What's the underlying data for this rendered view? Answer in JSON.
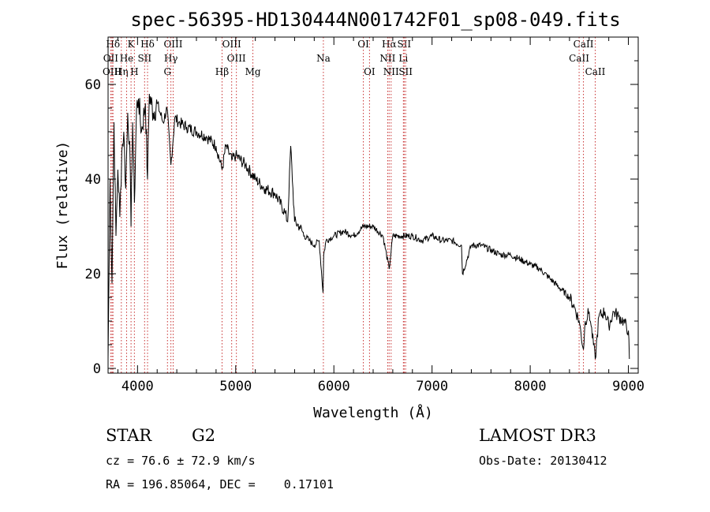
{
  "chart_data": {
    "type": "line",
    "title": "spec-56395-HD130444N001742F01_sp08-049.fits",
    "xlabel": "Wavelength (Å)",
    "ylabel": "Flux (relative)",
    "xlim": [
      3700,
      9100
    ],
    "ylim": [
      -1,
      70
    ],
    "xticks": [
      4000,
      5000,
      6000,
      7000,
      8000,
      9000
    ],
    "yticks": [
      0,
      20,
      40,
      60
    ],
    "series": [
      {
        "name": "flux",
        "x": [
          3700,
          3720,
          3740,
          3760,
          3780,
          3800,
          3820,
          3840,
          3860,
          3880,
          3900,
          3920,
          3934,
          3950,
          3968,
          3990,
          4010,
          4040,
          4080,
          4102,
          4120,
          4160,
          4200,
          4260,
          4300,
          4340,
          4380,
          4420,
          4500,
          4600,
          4700,
          4800,
          4861,
          4900,
          4960,
          5000,
          5100,
          5200,
          5300,
          5400,
          5500,
          5530,
          5560,
          5600,
          5650,
          5700,
          5750,
          5800,
          5850,
          5890,
          5896,
          5920,
          6000,
          6100,
          6200,
          6300,
          6400,
          6500,
          6563,
          6600,
          6700,
          6800,
          6900,
          7000,
          7100,
          7200,
          7300,
          7310,
          7400,
          7500,
          7600,
          7700,
          7800,
          7900,
          8000,
          8100,
          8200,
          8300,
          8400,
          8450,
          8498,
          8542,
          8560,
          8600,
          8620,
          8662,
          8700,
          8760,
          8800,
          8850,
          8900,
          8950,
          9000,
          9010
        ],
        "values": [
          2,
          40,
          18,
          52,
          28,
          42,
          32,
          46,
          50,
          38,
          54,
          48,
          30,
          52,
          35,
          55,
          57,
          50,
          56,
          40,
          58,
          54,
          56,
          52,
          55,
          43,
          53,
          52,
          51,
          50,
          49,
          47,
          42,
          47,
          44,
          45,
          43,
          40,
          38,
          37,
          33,
          31,
          47,
          31,
          30,
          28,
          27,
          26,
          27,
          16,
          24,
          27,
          28,
          29,
          28,
          30,
          30,
          28,
          21,
          28,
          28,
          28,
          27,
          28,
          27,
          27,
          26,
          20,
          26,
          26,
          25,
          24,
          24,
          23,
          22,
          21,
          19,
          17,
          15,
          13,
          10,
          4,
          10,
          12,
          9,
          2,
          11,
          12,
          9,
          12,
          11,
          10,
          8,
          2
        ]
      }
    ],
    "lines": [
      {
        "label": "Hδ",
        "wavelength": 3750,
        "row": 1
      },
      {
        "label": "OII",
        "wavelength": 3727,
        "row": 2
      },
      {
        "label": "OIII",
        "wavelength": 3740,
        "row": 3
      },
      {
        "label": "Hη",
        "wavelength": 3835,
        "row": 3
      },
      {
        "label": "He",
        "wavelength": 3889,
        "row": 2
      },
      {
        "label": "K",
        "wavelength": 3934,
        "row": 1
      },
      {
        "label": "H",
        "wavelength": 3968,
        "row": 3
      },
      {
        "label": "SII",
        "wavelength": 4072,
        "row": 2
      },
      {
        "label": "Hδ",
        "wavelength": 4102,
        "row": 1
      },
      {
        "label": "OIII",
        "wavelength": 4363,
        "row": 1
      },
      {
        "label": "Hγ",
        "wavelength": 4340,
        "row": 2
      },
      {
        "label": "G",
        "wavelength": 4305,
        "row": 3
      },
      {
        "label": "Hβ",
        "wavelength": 4861,
        "row": 3
      },
      {
        "label": "OIII",
        "wavelength": 4959,
        "row": 1
      },
      {
        "label": "OIII",
        "wavelength": 5007,
        "row": 2
      },
      {
        "label": "Mg",
        "wavelength": 5175,
        "row": 3
      },
      {
        "label": "Na",
        "wavelength": 5893,
        "row": 2
      },
      {
        "label": "OI",
        "wavelength": 6300,
        "row": 1
      },
      {
        "label": "OI",
        "wavelength": 6363,
        "row": 3
      },
      {
        "label": "Hα",
        "wavelength": 6563,
        "row": 1
      },
      {
        "label": "NII",
        "wavelength": 6548,
        "row": 2
      },
      {
        "label": "NII",
        "wavelength": 6583,
        "row": 3
      },
      {
        "label": "SII",
        "wavelength": 6716,
        "row": 1
      },
      {
        "label": "Li",
        "wavelength": 6708,
        "row": 2
      },
      {
        "label": "SII",
        "wavelength": 6731,
        "row": 3
      },
      {
        "label": "CaII",
        "wavelength": 8542,
        "row": 1
      },
      {
        "label": "CaII",
        "wavelength": 8498,
        "row": 2
      },
      {
        "label": "CaII",
        "wavelength": 8662,
        "row": 3
      }
    ]
  },
  "info": {
    "object_class": "STAR",
    "subclass": "G2",
    "survey": "LAMOST DR3",
    "cz": "cz = 76.6 ± 72.9 km/s",
    "obs_date": "Obs-Date: 20130412",
    "coords": "RA = 196.85064, DEC =    0.17101"
  }
}
